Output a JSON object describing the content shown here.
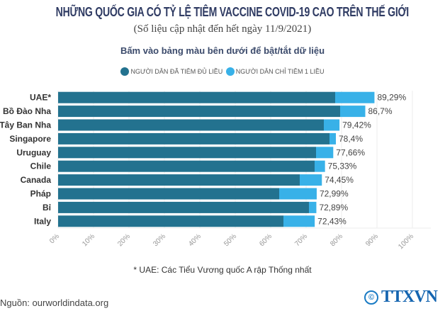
{
  "chart_data": {
    "type": "bar",
    "orientation": "horizontal",
    "stacked": true,
    "title": "NHỮNG QUỐC GIA CÓ TỶ LỆ TIÊM VACCINE COVID-19 CAO TRÊN THẾ GIỚI",
    "subtitle": "(Số liệu cập nhật đến hết ngày 11/9/2021)",
    "instruction": "Bấm vào bảng màu bên dưới để bật/tắt dữ liệu",
    "categories": [
      "UAE*",
      "Bồ Đào Nha",
      "Tây Ban Nha",
      "Singapore",
      "Uruguay",
      "Chile",
      "Canada",
      "Pháp",
      "Bỉ",
      "Italy"
    ],
    "series": [
      {
        "name": "NGƯỜI DÂN ĐÃ TIÊM ĐỦ LIỀU",
        "color": "#23728f",
        "values": [
          78.2,
          79.6,
          75.0,
          76.6,
          72.8,
          72.4,
          68.2,
          62.4,
          70.8,
          63.6
        ]
      },
      {
        "name": "NGƯỜI DÂN CHỈ TIÊM 1 LIỀU",
        "color": "#38b1e8",
        "values": [
          11.09,
          7.1,
          4.42,
          1.8,
          4.86,
          2.93,
          6.25,
          10.59,
          2.09,
          8.83
        ]
      }
    ],
    "total_labels": [
      "89,29%",
      "86,7%",
      "79,42%",
      "78,4%",
      "77,66%",
      "75,33%",
      "74,45%",
      "72,99%",
      "72,89%",
      "72,43%"
    ],
    "xlim": [
      0,
      100
    ],
    "xticks": [
      "0%",
      "10%",
      "20%",
      "30%",
      "40%",
      "50%",
      "60%",
      "70%",
      "80%",
      "90%",
      "100%"
    ],
    "grid": true,
    "legend_position": "top"
  },
  "footnote": "* UAE: Các Tiểu Vương quốc A rập Thống nhất",
  "source": "Nguồn: ourworldindata.org",
  "logo": "TTXVN"
}
